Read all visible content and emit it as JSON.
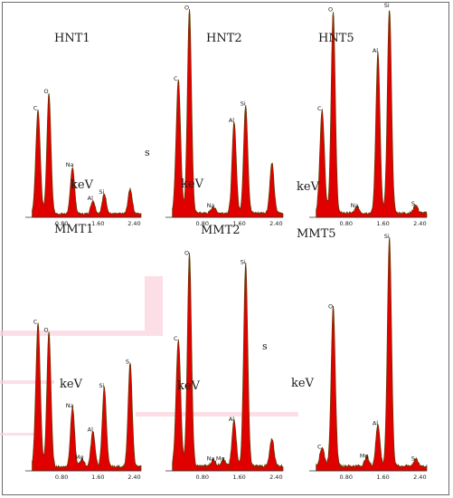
{
  "chart_data": [
    {
      "type": "area",
      "title": "HNT1",
      "xlabel": "keV",
      "xlim": [
        0,
        2.55
      ],
      "ylim": [
        0,
        1
      ],
      "x_ticks": [
        "0.80",
        "1.60",
        "2.40"
      ],
      "peaks": [
        {
          "label": "C",
          "x": 0.28,
          "y": 0.62
        },
        {
          "label": "O",
          "x": 0.52,
          "y": 0.72
        },
        {
          "label": "Na",
          "x": 1.04,
          "y": 0.28
        },
        {
          "label": "Al",
          "x": 1.49,
          "y": 0.08
        },
        {
          "label": "Si",
          "x": 1.74,
          "y": 0.12
        },
        {
          "label": "",
          "x": 2.31,
          "y": 0.15
        }
      ],
      "stray_label": "s"
    },
    {
      "type": "area",
      "title": "HNT2",
      "xlabel": "keV",
      "xlim": [
        0,
        2.55
      ],
      "ylim": [
        0,
        1
      ],
      "x_ticks": [
        "0.80",
        "1.60",
        "2.40"
      ],
      "peaks": [
        {
          "label": "C",
          "x": 0.28,
          "y": 0.64
        },
        {
          "label": "O",
          "x": 0.52,
          "y": 0.98
        },
        {
          "label": "Na",
          "x": 1.04,
          "y": 0.03
        },
        {
          "label": "Al",
          "x": 1.49,
          "y": 0.44
        },
        {
          "label": "Si",
          "x": 1.74,
          "y": 0.52
        },
        {
          "label": "",
          "x": 2.31,
          "y": 0.24
        }
      ],
      "stray_label": ""
    },
    {
      "type": "area",
      "title": "HNT5",
      "xlabel": "keV",
      "footer_label": "MMT5",
      "xlim": [
        0,
        2.55
      ],
      "ylim": [
        0,
        1
      ],
      "x_ticks": [
        "0.80",
        "1.60",
        "2.40"
      ],
      "peaks": [
        {
          "label": "C",
          "x": 0.28,
          "y": 0.5
        },
        {
          "label": "O",
          "x": 0.52,
          "y": 0.98
        },
        {
          "label": "Na",
          "x": 1.04,
          "y": 0.03
        },
        {
          "label": "Al",
          "x": 1.49,
          "y": 0.78
        },
        {
          "label": "Si",
          "x": 1.74,
          "y": 1.0
        },
        {
          "label": "S",
          "x": 2.31,
          "y": 0.04
        }
      ],
      "stray_label": ""
    },
    {
      "type": "area",
      "title": "MMT1",
      "xlabel": "keV",
      "xlim": [
        0,
        2.55
      ],
      "ylim": [
        0,
        1
      ],
      "x_ticks": [
        "0.80",
        "1.60",
        "2.40"
      ],
      "peaks": [
        {
          "label": "C",
          "x": 0.28,
          "y": 0.72
        },
        {
          "label": "O",
          "x": 0.52,
          "y": 0.68
        },
        {
          "label": "Na",
          "x": 1.04,
          "y": 0.3
        },
        {
          "label": "Mg",
          "x": 1.25,
          "y": 0.04
        },
        {
          "label": "Al",
          "x": 1.49,
          "y": 0.18
        },
        {
          "label": "Si",
          "x": 1.74,
          "y": 0.4
        },
        {
          "label": "S",
          "x": 2.31,
          "y": 0.52
        }
      ],
      "stray_label": ""
    },
    {
      "type": "area",
      "title": "MMT2",
      "xlabel": "keV",
      "xlim": [
        0,
        2.55
      ],
      "ylim": [
        0,
        1
      ],
      "x_ticks": [
        "0.80",
        "1.60",
        "2.40"
      ],
      "peaks": [
        {
          "label": "C",
          "x": 0.28,
          "y": 0.55
        },
        {
          "label": "O",
          "x": 0.52,
          "y": 0.92
        },
        {
          "label": "Na",
          "x": 1.04,
          "y": 0.03
        },
        {
          "label": "Mg",
          "x": 1.25,
          "y": 0.03
        },
        {
          "label": "Al",
          "x": 1.49,
          "y": 0.2
        },
        {
          "label": "Si",
          "x": 1.74,
          "y": 0.88
        },
        {
          "label": "",
          "x": 2.31,
          "y": 0.12
        }
      ],
      "stray_label": "s"
    },
    {
      "type": "area",
      "title": "",
      "xlabel": "keV",
      "xlim": [
        0,
        2.55
      ],
      "ylim": [
        0,
        1
      ],
      "x_ticks": [
        "0.80",
        "1.60",
        "2.40"
      ],
      "peaks": [
        {
          "label": "C",
          "x": 0.28,
          "y": 0.08
        },
        {
          "label": "O",
          "x": 0.52,
          "y": 0.68
        },
        {
          "label": "Mg",
          "x": 1.25,
          "y": 0.04
        },
        {
          "label": "Al",
          "x": 1.49,
          "y": 0.18
        },
        {
          "label": "Si",
          "x": 1.74,
          "y": 0.98
        },
        {
          "label": "S",
          "x": 2.31,
          "y": 0.03
        }
      ],
      "stray_label": ""
    }
  ],
  "colors": {
    "fill": "#e00000",
    "outline": "#5c3a00",
    "axis": "#333333",
    "background_tint": "#fbd0dc"
  }
}
